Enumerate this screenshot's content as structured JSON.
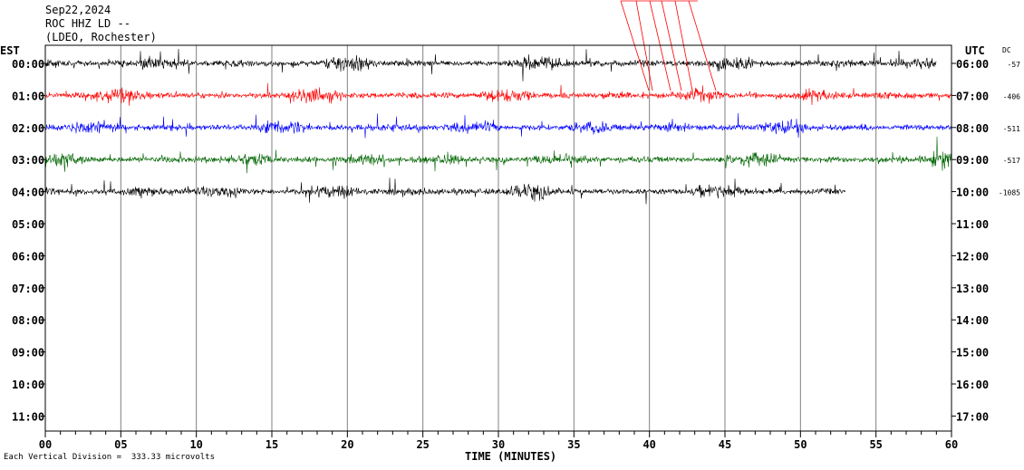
{
  "header": {
    "date": "Sep22,2024",
    "station": "ROC HHZ LD --",
    "network": "(LDEO, Rochester)"
  },
  "footer": {
    "scale_note": "Each Vertical Division =  333.33 microvolts"
  },
  "colors": {
    "black": "#000000",
    "red": "#ff0000",
    "blue": "#0000ff",
    "green": "#006400",
    "grid": "#808080"
  },
  "chart_data": {
    "type": "line",
    "xlabel": "TIME (MINUTES)",
    "x_ticks": [
      "00",
      "05",
      "10",
      "15",
      "20",
      "25",
      "30",
      "35",
      "40",
      "45",
      "50",
      "55",
      "60"
    ],
    "xlim": [
      0,
      60
    ],
    "left_axis_title": "EST",
    "right_axis_title": "UTC",
    "dc_title": "DC",
    "est_labels": [
      "00:00",
      "01:00",
      "02:00",
      "03:00",
      "04:00",
      "05:00",
      "06:00",
      "07:00",
      "08:00",
      "09:00",
      "10:00",
      "11:00"
    ],
    "utc_labels": [
      "06:00",
      "07:00",
      "08:00",
      "09:00",
      "10:00",
      "11:00",
      "12:00",
      "13:00",
      "14:00",
      "15:00",
      "16:00",
      "17:00"
    ],
    "grid": "vertical lines every 5 minutes",
    "traces": [
      {
        "hour_row": 0,
        "color": "#000000",
        "dc": "-57",
        "end_minute": 59
      },
      {
        "hour_row": 1,
        "color": "#ff0000",
        "dc": "-406",
        "end_minute": 60
      },
      {
        "hour_row": 2,
        "color": "#0000ff",
        "dc": "-511",
        "end_minute": 60
      },
      {
        "hour_row": 3,
        "color": "#006400",
        "dc": "-517",
        "end_minute": 60
      },
      {
        "hour_row": 4,
        "color": "#000000",
        "dc": "-1085",
        "end_minute": 53
      }
    ]
  }
}
